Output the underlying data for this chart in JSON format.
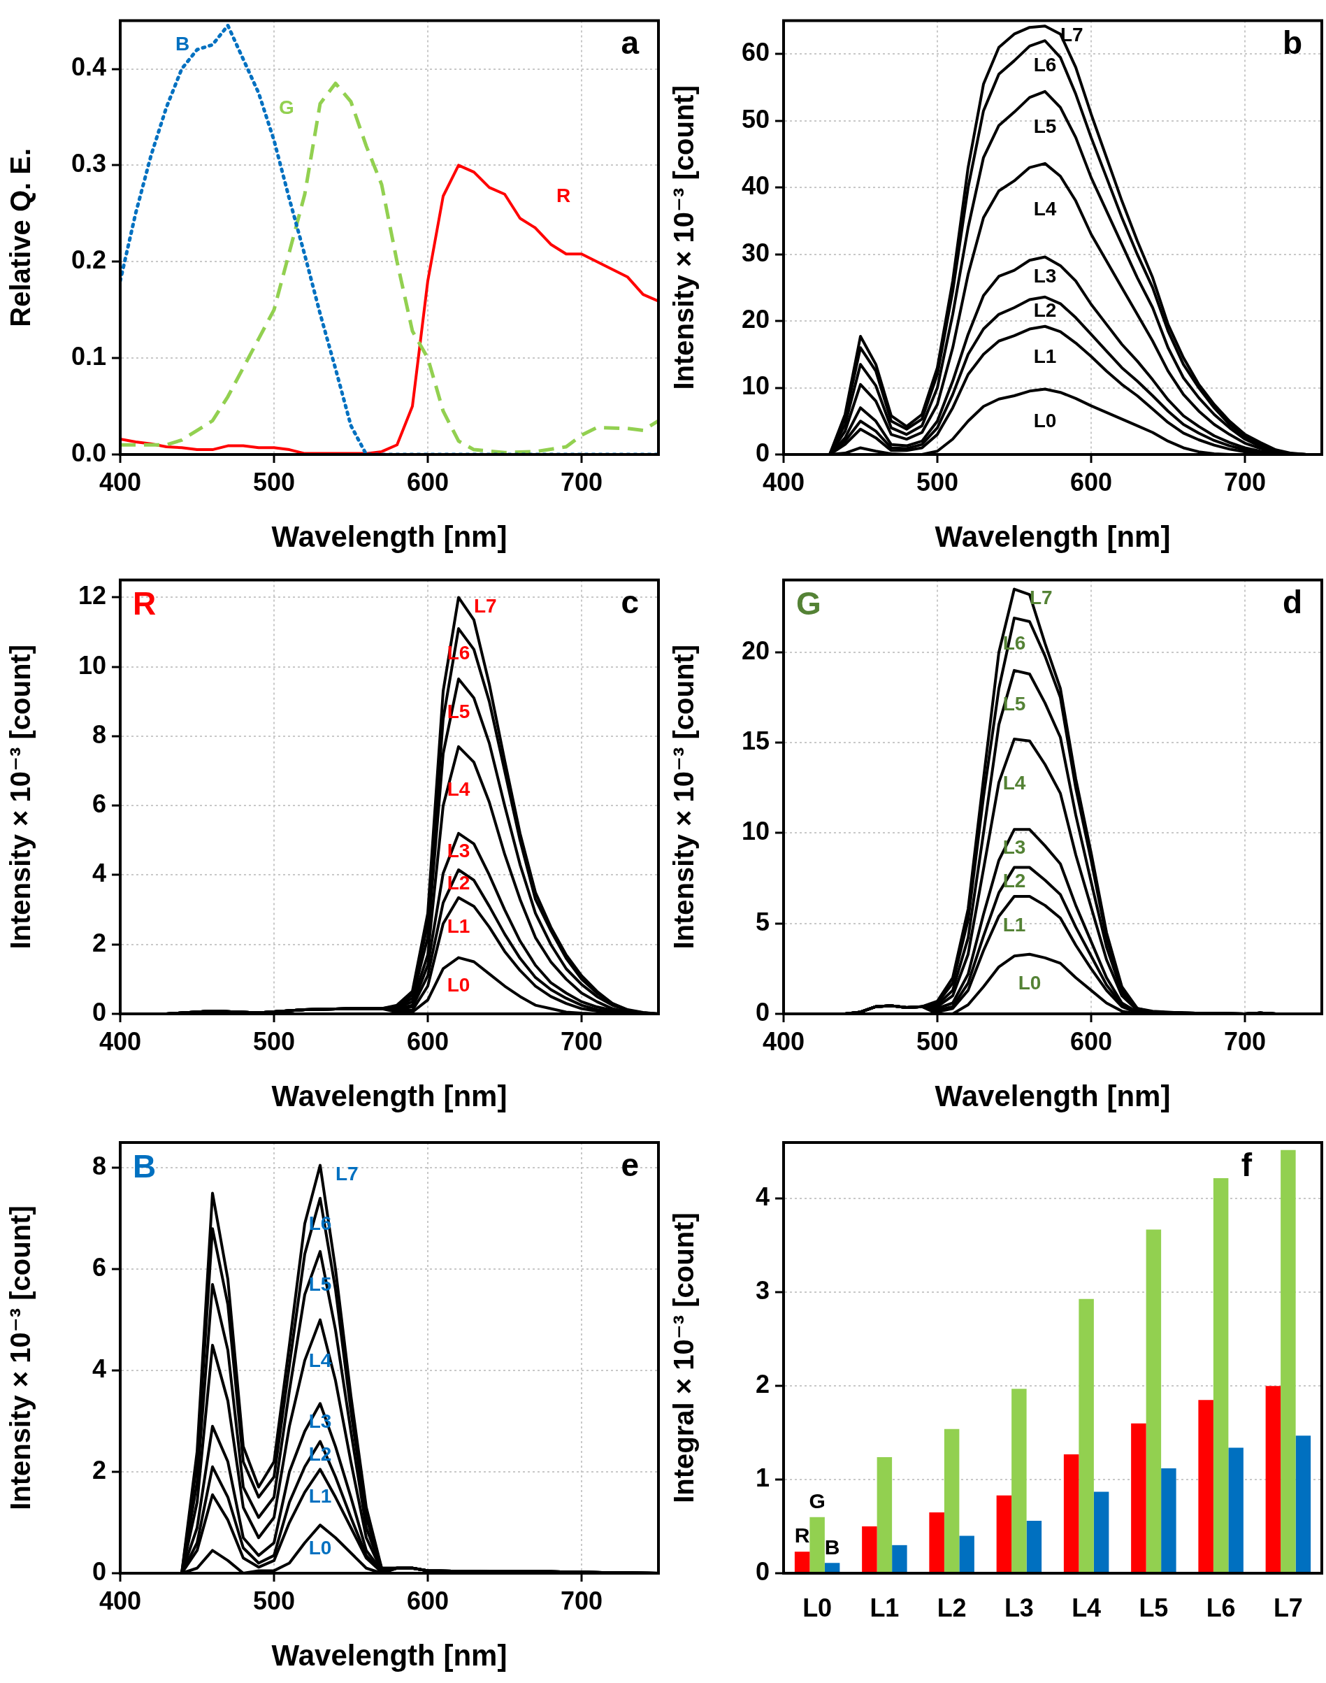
{
  "chart_data": [
    {
      "type": "line",
      "title": "a",
      "xlabel": "Wavelength [nm]",
      "ylabel": "Relative Q. E.",
      "xlim": [
        400,
        750
      ],
      "ylim": [
        0,
        0.45
      ],
      "xticks": [
        400,
        500,
        600,
        700
      ],
      "yticks": [
        {
          "value": 0,
          "label": "0.0"
        },
        0.1,
        0.2,
        0.3,
        0.4
      ],
      "grid": true,
      "series": [
        {
          "name": "B",
          "color": "#0070c0",
          "line_style": "dotted",
          "x": [
            400,
            410,
            420,
            430,
            440,
            450,
            460,
            470,
            480,
            490,
            500,
            510,
            520,
            530,
            540,
            550,
            560,
            750
          ],
          "values": [
            0.18,
            0.25,
            0.31,
            0.36,
            0.4,
            0.42,
            0.425,
            0.445,
            0.41,
            0.375,
            0.326,
            0.265,
            0.207,
            0.146,
            0.089,
            0.03,
            0,
            0
          ]
        },
        {
          "name": "G",
          "color": "#92d050",
          "line_style": "dashed",
          "x": [
            400,
            420,
            430,
            440,
            450,
            460,
            470,
            480,
            490,
            500,
            510,
            520,
            530,
            540,
            550,
            560,
            570,
            580,
            590,
            600,
            610,
            620,
            630,
            650,
            670,
            690,
            700,
            710,
            730,
            740,
            750
          ],
          "values": [
            0.01,
            0.01,
            0.01,
            0.015,
            0.025,
            0.035,
            0.06,
            0.09,
            0.12,
            0.15,
            0.21,
            0.27,
            0.364,
            0.385,
            0.366,
            0.32,
            0.28,
            0.2,
            0.128,
            0.1,
            0.045,
            0.014,
            0.005,
            0.002,
            0.003,
            0.008,
            0.02,
            0.028,
            0.027,
            0.025,
            0.035
          ]
        },
        {
          "name": "R",
          "color": "#ff0000",
          "line_style": "solid",
          "x": [
            400,
            410,
            420,
            430,
            440,
            450,
            460,
            470,
            480,
            490,
            500,
            510,
            520,
            530,
            550,
            560,
            570,
            580,
            590,
            600,
            610,
            620,
            630,
            640,
            650,
            660,
            670,
            680,
            690,
            700,
            710,
            720,
            730,
            740,
            750
          ],
          "values": [
            0.016,
            0.013,
            0.011,
            0.008,
            0.007,
            0.005,
            0.005,
            0.009,
            0.009,
            0.007,
            0.007,
            0.005,
            0.001,
            0.001,
            0.001,
            0.001,
            0.003,
            0.01,
            0.05,
            0.18,
            0.268,
            0.3,
            0.293,
            0.277,
            0.27,
            0.245,
            0.235,
            0.218,
            0.208,
            0.208,
            0.2,
            0.192,
            0.184,
            0.166,
            0.159
          ]
        }
      ]
    },
    {
      "type": "line",
      "title": "b",
      "xlabel": "Wavelength [nm]",
      "ylabel": "Intensity × 10⁻³ [count]",
      "xlim": [
        400,
        750
      ],
      "ylim": [
        0,
        65
      ],
      "xticks": [
        400,
        500,
        600,
        700
      ],
      "yticks": [
        0,
        10,
        20,
        30,
        40,
        50,
        60
      ],
      "grid": true,
      "x": [
        430,
        440,
        450,
        460,
        470,
        480,
        490,
        500,
        510,
        520,
        530,
        540,
        550,
        560,
        570,
        580,
        590,
        600,
        610,
        620,
        630,
        640,
        650,
        660,
        670,
        680,
        690,
        700,
        710,
        720,
        730,
        740,
        750
      ],
      "series": [
        {
          "name": "L0",
          "color": "#000000",
          "values": [
            0,
            0.2,
            1,
            0.5,
            0.1,
            0,
            0,
            0.5,
            2.3,
            5,
            7.2,
            8.3,
            8.8,
            9.5,
            9.8,
            9.3,
            8.4,
            7.3,
            6.3,
            5.3,
            4.3,
            3.3,
            2,
            1,
            0.4,
            0.1,
            0,
            0,
            0,
            0,
            0,
            0,
            0
          ]
        },
        {
          "name": "L1",
          "color": "#000000",
          "values": [
            0,
            1.5,
            3.8,
            2.5,
            0.6,
            0.6,
            1,
            3,
            7,
            12,
            15,
            17,
            17.8,
            18.8,
            19.2,
            18.4,
            16.7,
            14.7,
            12.5,
            10.5,
            8.8,
            6.8,
            4.8,
            3.2,
            2.2,
            1.4,
            0.8,
            0.4,
            0.2,
            0,
            0,
            0,
            0
          ]
        },
        {
          "name": "L2",
          "color": "#000000",
          "values": [
            0,
            2,
            5,
            3.5,
            1,
            0.9,
            1.5,
            4,
            9,
            15,
            18.8,
            21,
            22,
            23.2,
            23.6,
            22.6,
            20.5,
            18,
            15.5,
            13,
            11,
            8.8,
            6.5,
            4.5,
            3.2,
            2.1,
            1.3,
            0.7,
            0.3,
            0.1,
            0,
            0,
            0
          ]
        },
        {
          "name": "L3",
          "color": "#000000",
          "values": [
            0,
            2.5,
            7,
            5,
            1.5,
            1.3,
            2,
            5,
            11,
            18,
            23.8,
            26.7,
            27.6,
            29.1,
            29.6,
            28.3,
            26,
            22.5,
            19.5,
            16.5,
            14,
            11.2,
            8.2,
            5.8,
            4.2,
            2.8,
            1.8,
            1,
            0.5,
            0.2,
            0,
            0,
            0
          ]
        },
        {
          "name": "L4",
          "color": "#000000",
          "values": [
            0,
            3.5,
            10.5,
            8,
            3,
            2.3,
            3.3,
            7.5,
            16,
            27,
            35.5,
            39.5,
            41,
            43,
            43.6,
            41.7,
            38,
            33,
            29,
            25,
            21,
            17,
            12.5,
            9,
            6.5,
            4.5,
            3,
            1.7,
            0.9,
            0.3,
            0.1,
            0,
            0
          ]
        },
        {
          "name": "L5",
          "color": "#000000",
          "values": [
            0,
            4.5,
            13.5,
            10.3,
            4,
            3,
            4.3,
            10,
            21,
            34,
            44.5,
            49.3,
            51.3,
            53.5,
            54.4,
            52,
            47.5,
            41.5,
            36.5,
            31.5,
            26.5,
            22,
            16,
            11.5,
            8.5,
            6,
            4,
            2.3,
            1.2,
            0.4,
            0.1,
            0,
            0
          ]
        },
        {
          "name": "L6",
          "color": "#000000",
          "values": [
            0,
            5.5,
            16,
            12.5,
            5,
            3.8,
            5.3,
            12,
            24.5,
            40,
            51.5,
            57,
            59,
            61.2,
            62,
            59.5,
            54,
            47.5,
            41.5,
            35.5,
            30,
            25,
            18.5,
            13.5,
            10,
            7,
            4.5,
            2.7,
            1.5,
            0.5,
            0.1,
            0,
            0
          ]
        },
        {
          "name": "L7",
          "color": "#000000",
          "values": [
            0,
            6,
            17.7,
            13.5,
            5.8,
            4.2,
            6,
            13,
            26,
            43,
            55.5,
            61,
            63,
            64,
            64.2,
            63,
            58,
            51,
            44.5,
            38,
            32,
            26.5,
            19.5,
            14.5,
            10.5,
            7.5,
            5,
            3,
            1.8,
            0.7,
            0.2,
            0,
            0
          ]
        }
      ]
    },
    {
      "type": "line",
      "title": "c",
      "subtitle": "R",
      "xlabel": "Wavelength [nm]",
      "ylabel": "Intensity × 10⁻³ [count]",
      "xlim": [
        400,
        750
      ],
      "ylim": [
        0,
        12.5
      ],
      "xticks": [
        400,
        500,
        600,
        700
      ],
      "yticks": [
        0,
        2,
        4,
        6,
        8,
        10,
        12
      ],
      "grid": true,
      "x": [
        400,
        430,
        460,
        490,
        520,
        550,
        570,
        580,
        590,
        600,
        610,
        620,
        630,
        640,
        650,
        660,
        670,
        680,
        690,
        700,
        710,
        720,
        730,
        740,
        750
      ],
      "series": [
        {
          "name": "L0",
          "color": "#000000",
          "values": [
            0,
            0,
            0.08,
            0.03,
            0.12,
            0.15,
            0.15,
            0.05,
            0.05,
            0.4,
            1.3,
            1.62,
            1.5,
            1.15,
            0.8,
            0.5,
            0.25,
            0.15,
            0.05,
            0.02,
            0,
            0,
            0,
            0,
            0
          ]
        },
        {
          "name": "L1",
          "color": "#000000",
          "values": [
            0,
            0,
            0.08,
            0.03,
            0.12,
            0.15,
            0.15,
            0.1,
            0.1,
            0.8,
            2.6,
            3.35,
            3.1,
            2.5,
            1.8,
            1.25,
            0.8,
            0.5,
            0.3,
            0.15,
            0.08,
            0.03,
            0,
            0,
            0
          ]
        },
        {
          "name": "L2",
          "color": "#000000",
          "values": [
            0,
            0,
            0.08,
            0.03,
            0.12,
            0.15,
            0.15,
            0.12,
            0.2,
            1.1,
            3.2,
            4.15,
            3.85,
            3.1,
            2.3,
            1.6,
            1.05,
            0.7,
            0.45,
            0.25,
            0.12,
            0.05,
            0,
            0,
            0
          ]
        },
        {
          "name": "L3",
          "color": "#000000",
          "values": [
            0,
            0,
            0.08,
            0.03,
            0.12,
            0.15,
            0.15,
            0.15,
            0.25,
            1.4,
            4.05,
            5.2,
            4.9,
            4,
            3,
            2.1,
            1.4,
            0.9,
            0.6,
            0.35,
            0.2,
            0.1,
            0,
            0,
            0
          ]
        },
        {
          "name": "L4",
          "color": "#000000",
          "values": [
            0,
            0,
            0.08,
            0.03,
            0.12,
            0.15,
            0.15,
            0.18,
            0.35,
            1.7,
            6,
            7.7,
            7.25,
            6.1,
            4.6,
            3.3,
            2.2,
            1.5,
            1,
            0.6,
            0.35,
            0.15,
            0.05,
            0,
            0
          ]
        },
        {
          "name": "L5",
          "color": "#000000",
          "values": [
            0,
            0,
            0.08,
            0.03,
            0.12,
            0.15,
            0.15,
            0.2,
            0.45,
            2.2,
            7.5,
            9.65,
            9.1,
            7.8,
            6,
            4.3,
            2.9,
            2,
            1.3,
            0.85,
            0.5,
            0.25,
            0.1,
            0.03,
            0
          ]
        },
        {
          "name": "L6",
          "color": "#000000",
          "values": [
            0,
            0,
            0.08,
            0.03,
            0.12,
            0.15,
            0.15,
            0.22,
            0.55,
            2.6,
            8.5,
            11.1,
            10.5,
            9,
            7,
            5,
            3.3,
            2.4,
            1.6,
            1,
            0.6,
            0.3,
            0.1,
            0.03,
            0
          ]
        },
        {
          "name": "L7",
          "color": "#000000",
          "values": [
            0,
            0,
            0.08,
            0.03,
            0.12,
            0.15,
            0.15,
            0.25,
            0.65,
            2.9,
            9.3,
            12,
            11.35,
            9.5,
            7.3,
            5.2,
            3.5,
            2.5,
            1.7,
            1.1,
            0.65,
            0.3,
            0.12,
            0.04,
            0
          ]
        }
      ]
    },
    {
      "type": "line",
      "title": "d",
      "subtitle": "G",
      "xlabel": "Wavelength [nm]",
      "ylabel": "Intensity × 10⁻³ [count]",
      "xlim": [
        400,
        750
      ],
      "ylim": [
        0,
        24
      ],
      "xticks": [
        400,
        500,
        600,
        700
      ],
      "yticks": [
        0,
        5,
        10,
        15,
        20
      ],
      "grid": true,
      "x": [
        400,
        440,
        450,
        460,
        470,
        480,
        490,
        500,
        510,
        520,
        530,
        540,
        550,
        560,
        570,
        580,
        590,
        600,
        610,
        620,
        630,
        640,
        660,
        700,
        710,
        720,
        740
      ],
      "series": [
        {
          "name": "L0",
          "color": "#000000",
          "values": [
            0,
            0,
            0.1,
            0.4,
            0.45,
            0.35,
            0.4,
            0,
            0,
            0.5,
            1.5,
            2.6,
            3.2,
            3.3,
            3.1,
            2.8,
            2,
            1.3,
            0.6,
            0.15,
            0,
            0.1,
            0.05,
            0,
            0.05,
            0,
            0
          ]
        },
        {
          "name": "L1",
          "color": "#000000",
          "values": [
            0,
            0,
            0.1,
            0.4,
            0.45,
            0.35,
            0.4,
            0.1,
            0.3,
            1.3,
            3.5,
            5.4,
            6.5,
            6.5,
            6,
            5.3,
            3.8,
            2.5,
            1.3,
            0.4,
            0.05,
            0.1,
            0.05,
            0,
            0.05,
            0,
            0
          ]
        },
        {
          "name": "L2",
          "color": "#000000",
          "values": [
            0,
            0,
            0.1,
            0.4,
            0.45,
            0.35,
            0.4,
            0.2,
            0.4,
            1.7,
            4.3,
            6.7,
            8.1,
            8.1,
            7.4,
            6.6,
            4.8,
            3.2,
            1.6,
            0.5,
            0.1,
            0.1,
            0.05,
            0,
            0.05,
            0,
            0
          ]
        },
        {
          "name": "L3",
          "color": "#000000",
          "values": [
            0,
            0,
            0.1,
            0.4,
            0.45,
            0.35,
            0.4,
            0.3,
            0.6,
            2.2,
            5.5,
            8.5,
            10.2,
            10.2,
            9.3,
            8.3,
            6,
            4,
            2,
            0.6,
            0.1,
            0.1,
            0.05,
            0,
            0.05,
            0,
            0
          ]
        },
        {
          "name": "L4",
          "color": "#000000",
          "values": [
            0,
            0,
            0.1,
            0.4,
            0.45,
            0.35,
            0.4,
            0.4,
            1,
            3.3,
            8,
            12.8,
            15.2,
            15.1,
            13.8,
            12.2,
            8.8,
            5.9,
            3,
            1,
            0.2,
            0.1,
            0.05,
            0,
            0.05,
            0,
            0
          ]
        },
        {
          "name": "L5",
          "color": "#000000",
          "values": [
            0,
            0,
            0.1,
            0.4,
            0.45,
            0.35,
            0.4,
            0.5,
            1.3,
            4.2,
            10,
            16,
            19,
            18.8,
            17.2,
            15.3,
            11,
            7.3,
            3.7,
            1.2,
            0.25,
            0.1,
            0.05,
            0,
            0.05,
            0,
            0
          ]
        },
        {
          "name": "L6",
          "color": "#000000",
          "values": [
            0,
            0,
            0.1,
            0.4,
            0.45,
            0.35,
            0.4,
            0.6,
            1.7,
            5.2,
            12,
            18,
            21.9,
            21.7,
            19.8,
            17.5,
            12.5,
            8.5,
            4.2,
            1.4,
            0.3,
            0.1,
            0.05,
            0,
            0.05,
            0,
            0
          ]
        },
        {
          "name": "L7",
          "color": "#000000",
          "values": [
            0,
            0,
            0.1,
            0.4,
            0.45,
            0.35,
            0.4,
            0.7,
            2,
            5.8,
            13,
            20,
            23.5,
            23.2,
            20.5,
            18,
            13,
            8.9,
            4.5,
            1.5,
            0.3,
            0.15,
            0.05,
            0,
            0.05,
            0,
            0
          ]
        }
      ]
    },
    {
      "type": "line",
      "title": "e",
      "subtitle": "B",
      "xlabel": "Wavelength [nm]",
      "ylabel": "Intensity × 10⁻³ [count]",
      "xlim": [
        400,
        750
      ],
      "ylim": [
        0,
        8.5
      ],
      "xticks": [
        400,
        500,
        600,
        700
      ],
      "yticks": [
        0,
        2,
        4,
        6,
        8
      ],
      "grid": true,
      "x": [
        400,
        440,
        450,
        460,
        470,
        480,
        490,
        500,
        510,
        520,
        530,
        540,
        550,
        560,
        570,
        580,
        590,
        600,
        640,
        680,
        720,
        750
      ],
      "series": [
        {
          "name": "L0",
          "color": "#000000",
          "values": [
            0,
            0,
            0.1,
            0.45,
            0.25,
            0,
            0.05,
            0.05,
            0.2,
            0.6,
            0.95,
            0.7,
            0.4,
            0.1,
            0,
            0.1,
            0.1,
            0.05,
            0.03,
            0.03,
            0.01,
            0
          ]
        },
        {
          "name": "L1",
          "color": "#000000",
          "values": [
            0,
            0,
            0.45,
            1.55,
            1.05,
            0.3,
            0.12,
            0.25,
            1,
            1.6,
            2.05,
            1.5,
            0.9,
            0.3,
            0.02,
            0.1,
            0.1,
            0.05,
            0.03,
            0.03,
            0.01,
            0
          ]
        },
        {
          "name": "L2",
          "color": "#000000",
          "values": [
            0,
            0,
            0.6,
            2.1,
            1.5,
            0.5,
            0.2,
            0.35,
            1.4,
            2.1,
            2.6,
            1.9,
            1.1,
            0.35,
            0.03,
            0.1,
            0.1,
            0.05,
            0.03,
            0.03,
            0.01,
            0
          ]
        },
        {
          "name": "L3",
          "color": "#000000",
          "values": [
            0,
            0,
            0.9,
            2.9,
            2.2,
            0.7,
            0.35,
            0.6,
            2,
            2.8,
            3.35,
            2.5,
            1.5,
            0.45,
            0.05,
            0.1,
            0.1,
            0.05,
            0.03,
            0.03,
            0.01,
            0
          ]
        },
        {
          "name": "L4",
          "color": "#000000",
          "values": [
            0,
            0,
            1.4,
            4.5,
            3.4,
            1.3,
            0.7,
            1.1,
            2.9,
            4.2,
            5,
            3.8,
            2.2,
            0.7,
            0.05,
            0.1,
            0.1,
            0.05,
            0.03,
            0.03,
            0.01,
            0
          ]
        },
        {
          "name": "L5",
          "color": "#000000",
          "values": [
            0,
            0,
            1.8,
            5.7,
            4.4,
            1.7,
            1.1,
            1.5,
            3.6,
            5.5,
            6.35,
            4.8,
            2.8,
            0.9,
            0.08,
            0.1,
            0.1,
            0.05,
            0.03,
            0.03,
            0.01,
            0
          ]
        },
        {
          "name": "L6",
          "color": "#000000",
          "values": [
            0,
            0,
            2.2,
            6.8,
            5.3,
            2.2,
            1.5,
            1.9,
            4.1,
            6.3,
            7.4,
            5.6,
            3.2,
            1.1,
            0.1,
            0.1,
            0.1,
            0.05,
            0.03,
            0.03,
            0.01,
            0
          ]
        },
        {
          "name": "L7",
          "color": "#000000",
          "values": [
            0,
            0,
            2.4,
            7.5,
            5.8,
            2.5,
            1.7,
            2.2,
            4.5,
            6.9,
            8.05,
            6,
            3.5,
            1.3,
            0.1,
            0.1,
            0.1,
            0.05,
            0.03,
            0.03,
            0.01,
            0
          ]
        }
      ]
    },
    {
      "type": "bar",
      "title": "f",
      "ylabel": "Integral × 10⁻³ [count]",
      "categories": [
        "L0",
        "L1",
        "L2",
        "L3",
        "L4",
        "L5",
        "L6",
        "L7"
      ],
      "ylim": [
        0,
        4.6
      ],
      "yticks": [
        0,
        1,
        2,
        3,
        4
      ],
      "grid": "y",
      "series": [
        {
          "name": "R",
          "color": "#ff0000",
          "values": [
            0.23,
            0.5,
            0.65,
            0.83,
            1.27,
            1.6,
            1.85,
            2.0
          ]
        },
        {
          "name": "G",
          "color": "#92d050",
          "values": [
            0.6,
            1.24,
            1.54,
            1.97,
            2.93,
            3.67,
            4.22,
            4.52
          ]
        },
        {
          "name": "B",
          "color": "#0070c0",
          "values": [
            0.11,
            0.3,
            0.4,
            0.56,
            0.87,
            1.12,
            1.34,
            1.47
          ]
        }
      ]
    }
  ]
}
